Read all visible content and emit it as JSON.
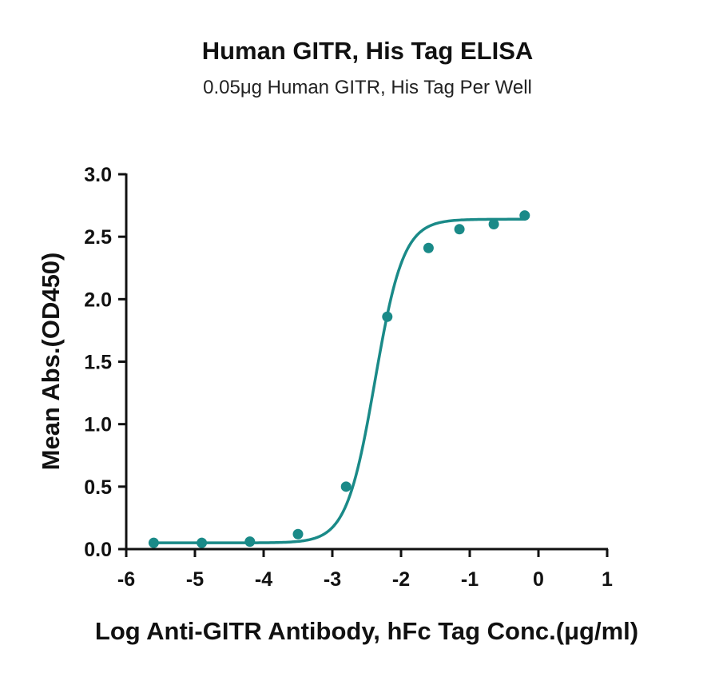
{
  "chart_data": {
    "type": "line",
    "title": "Human GITR, His Tag ELISA",
    "subtitle": "0.05μg Human GITR, His Tag Per Well",
    "xlabel": "Log Anti-GITR Antibody, hFc Tag Conc.(μg/ml)",
    "ylabel": "Mean Abs.(OD450)",
    "xlim": [
      -6,
      1
    ],
    "ylim": [
      0,
      3
    ],
    "x_ticks": [
      -6,
      -5,
      -4,
      -3,
      -2,
      -1,
      0,
      1
    ],
    "x_tick_labels": [
      "-6",
      "-5",
      "-4",
      "-3",
      "-2",
      "-1",
      "0",
      "1"
    ],
    "y_ticks": [
      0,
      0.5,
      1,
      1.5,
      2,
      2.5,
      3
    ],
    "y_tick_labels": [
      "0.0",
      "0.5",
      "1.0",
      "1.5",
      "2.0",
      "2.5",
      "3.0"
    ],
    "grid": false,
    "color": "#1a8a88",
    "series": [
      {
        "x": [
          -5.6,
          -4.9,
          -4.2,
          -3.5,
          -2.8,
          -2.2,
          -1.6,
          -1.15,
          -0.65,
          -0.2
        ],
        "y": [
          0.05,
          0.05,
          0.06,
          0.12,
          0.5,
          1.86,
          2.41,
          2.56,
          2.6,
          2.67
        ]
      }
    ],
    "fit": {
      "model": "4PL",
      "bottom": 0.05,
      "top": 2.64,
      "log_ec50": -2.38,
      "hill": 2.1
    }
  }
}
